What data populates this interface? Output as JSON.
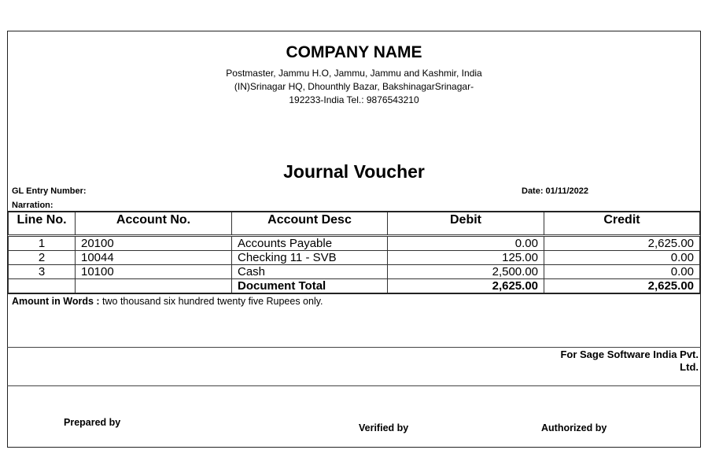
{
  "company": {
    "name": "COMPANY NAME",
    "address_lines": [
      "Postmaster, Jammu H.O, Jammu, Jammu and Kashmir, India",
      "(IN)Srinagar HQ, Dhounthly Bazar, BakshinagarSrinagar-",
      "192233-India Tel.: 9876543210"
    ]
  },
  "voucher": {
    "title": "Journal Voucher",
    "gl_entry_label": "GL Entry Number:",
    "gl_entry_value": "",
    "date_label": "Date: 01/11/2022",
    "narration_label": "Narration:"
  },
  "table": {
    "headers": [
      "Line No.",
      "Account No.",
      "Account Desc",
      "Debit",
      "Credit"
    ],
    "rows": [
      {
        "line": "1",
        "account": "20100",
        "desc": "Accounts Payable",
        "debit": "0.00",
        "credit": "2,625.00"
      },
      {
        "line": "2",
        "account": "10044",
        "desc": "Checking 11 - SVB",
        "debit": "125.00",
        "credit": "0.00"
      },
      {
        "line": "3",
        "account": "10100",
        "desc": "Cash",
        "debit": "2,500.00",
        "credit": "0.00"
      }
    ],
    "total": {
      "label": "Document Total",
      "debit": "2,625.00",
      "credit": "2,625.00"
    }
  },
  "amount_words": {
    "label": "Amount in Words :",
    "value": " two thousand  six hundred twenty five Rupees only."
  },
  "footer": {
    "for_line1": "For Sage Software India Pvt.",
    "for_line2": "Ltd.",
    "prepared": "Prepared by",
    "verified": "Verified by",
    "authorized": "Authorized by"
  }
}
